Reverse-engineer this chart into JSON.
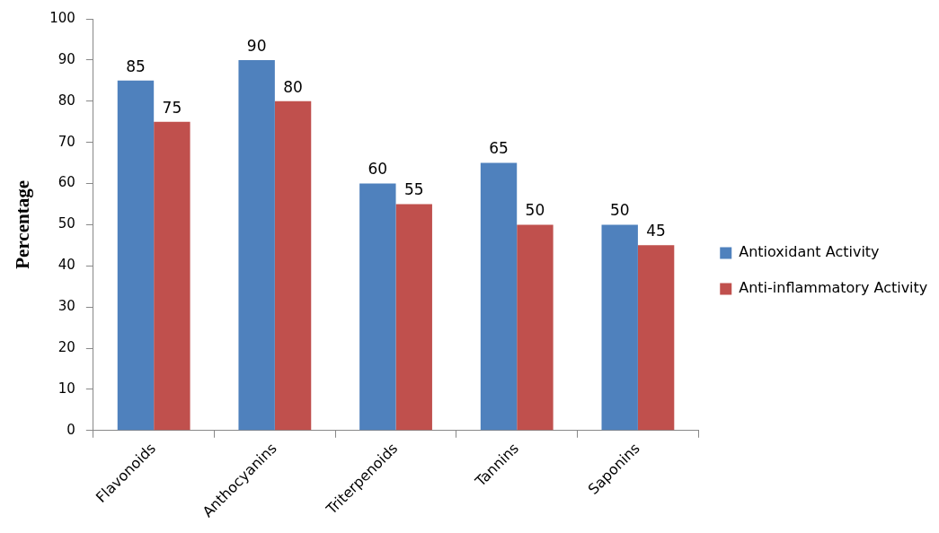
{
  "chart_data": {
    "type": "bar",
    "ylabel": "Percentage",
    "categories": [
      "Flavonoids",
      "Anthocyanins",
      "Triterpenoids",
      "Tannins",
      "Saponins"
    ],
    "series": [
      {
        "name": "Antioxidant Activity",
        "color": "#4f81bd",
        "values": [
          85,
          90,
          60,
          65,
          50
        ]
      },
      {
        "name": "Anti-inflammatory Activity",
        "color": "#c0504d",
        "values": [
          75,
          80,
          55,
          50,
          45
        ]
      }
    ],
    "ylim": [
      0,
      100
    ],
    "yticks": [
      0,
      10,
      20,
      30,
      40,
      50,
      60,
      70,
      80,
      90,
      100
    ],
    "grid": false,
    "legend": "right",
    "data_labels": true
  }
}
